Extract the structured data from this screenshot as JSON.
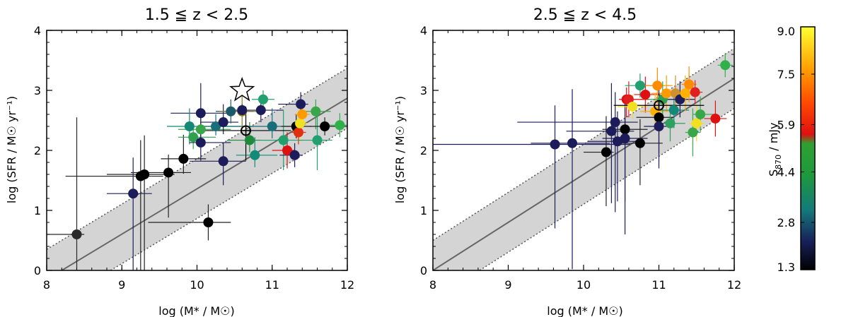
{
  "chart_data": [
    {
      "type": "scatter",
      "title": "1.5 ≦ z < 2.5",
      "xlabel": "log (M* / M☉)",
      "ylabel": "log (SFR / M☉ yr⁻¹)",
      "xlim": [
        8,
        12
      ],
      "ylim": [
        0,
        4
      ],
      "xticks": [
        "8",
        "9",
        "10",
        "11",
        "12"
      ],
      "yticks": [
        "0",
        "1",
        "2",
        "3",
        "4"
      ],
      "main_sequence": {
        "line": [
          [
            8.2,
            0.0
          ],
          [
            12.0,
            2.87
          ]
        ],
        "upper": [
          [
            8.0,
            0.35
          ],
          [
            12.0,
            3.37
          ]
        ],
        "lower": [
          [
            8.85,
            0.0
          ],
          [
            12.0,
            2.37
          ]
        ]
      },
      "star_marker": {
        "x": 10.6,
        "y": 3.0
      },
      "points": [
        {
          "x": 8.4,
          "y": 0.6,
          "s": 1.3,
          "xerr": [
            0.7,
            0.1
          ],
          "yerr": [
            0.6,
            1.95
          ],
          "color": "#2a2a2a"
        },
        {
          "x": 9.15,
          "y": 1.28,
          "s": 2.0,
          "xerr": [
            0.35,
            0.25
          ],
          "yerr": [
            1.28,
            0.6
          ],
          "color": "#1c1c5a"
        },
        {
          "x": 9.25,
          "y": 1.57,
          "s": 1.3,
          "xerr": [
            1.0,
            0.3
          ],
          "yerr": [
            1.57,
            0.6
          ],
          "color": "#000000"
        },
        {
          "x": 9.3,
          "y": 1.6,
          "s": 1.3,
          "xerr": [
            0.5,
            0.4
          ],
          "yerr": [
            1.6,
            0.65
          ],
          "color": "#000000"
        },
        {
          "x": 9.62,
          "y": 1.63,
          "s": 1.3,
          "xerr": [
            0.5,
            0.3
          ],
          "yerr": [
            0.75,
            0.3
          ],
          "color": "#000000"
        },
        {
          "x": 9.82,
          "y": 1.86,
          "s": 1.3,
          "xerr": [
            0.3,
            0.3
          ],
          "yerr": [
            0.25,
            0.4
          ],
          "color": "#000000"
        },
        {
          "x": 10.05,
          "y": 2.62,
          "s": 2.2,
          "xerr": [
            0.4,
            0.4
          ],
          "yerr": [
            0.5,
            0.5
          ],
          "color": "#1c1c5a"
        },
        {
          "x": 10.15,
          "y": 0.8,
          "s": 1.3,
          "xerr": [
            0.8,
            0.3
          ],
          "yerr": [
            0.3,
            0.3
          ],
          "color": "#000000"
        },
        {
          "x": 9.9,
          "y": 2.4,
          "s": 3.5,
          "xerr": [
            0.3,
            0.8
          ],
          "yerr": [
            0.3,
            0.3
          ],
          "color": "#138a78"
        },
        {
          "x": 9.95,
          "y": 2.22,
          "s": 3.5,
          "xerr": [
            0.2,
            0.3
          ],
          "yerr": [
            0.2,
            0.2
          ],
          "color": "#2fa050"
        },
        {
          "x": 10.05,
          "y": 2.35,
          "s": 3.8,
          "xerr": [
            0.3,
            0.4
          ],
          "yerr": [
            0.2,
            0.25
          ],
          "color": "#3aa64a"
        },
        {
          "x": 10.05,
          "y": 2.13,
          "s": 2.2,
          "xerr": [
            0.15,
            0.4
          ],
          "yerr": [
            0.3,
            0.5
          ],
          "color": "#1c1c5a"
        },
        {
          "x": 10.25,
          "y": 2.4,
          "s": 2.8,
          "xerr": [
            0.2,
            0.5
          ],
          "yerr": [
            0.15,
            0.2
          ],
          "color": "#1a6e7a"
        },
        {
          "x": 10.35,
          "y": 2.47,
          "s": 2.2,
          "xerr": [
            0.3,
            0.2
          ],
          "yerr": [
            0.2,
            0.3
          ],
          "color": "#1c1c5a"
        },
        {
          "x": 10.35,
          "y": 1.82,
          "s": 2.2,
          "xerr": [
            0.45,
            0.3
          ],
          "yerr": [
            0.4,
            0.3
          ],
          "color": "#1c1c5a"
        },
        {
          "x": 10.45,
          "y": 2.65,
          "s": 2.6,
          "xerr": [
            0.2,
            0.3
          ],
          "yerr": [
            0.2,
            0.2
          ],
          "color": "#1a5a6a"
        },
        {
          "x": 10.6,
          "y": 2.65,
          "s": 4.4,
          "xerr": [
            0.3,
            0.2
          ],
          "yerr": [
            0.3,
            0.3
          ],
          "color": "#8a7a20"
        },
        {
          "x": 10.6,
          "y": 2.67,
          "s": 2.2,
          "xerr": [
            0.1,
            0.1
          ],
          "yerr": [
            0.1,
            0.1
          ],
          "color": "#1c1c5a"
        },
        {
          "x": 10.7,
          "y": 2.17,
          "s": 4.4,
          "xerr": [
            0.3,
            0.3
          ],
          "yerr": [
            0.2,
            0.3
          ],
          "color": "#1f8a3a"
        },
        {
          "x": 10.85,
          "y": 2.67,
          "s": 2.2,
          "xerr": [
            0.2,
            0.3
          ],
          "yerr": [
            0.2,
            0.25
          ],
          "color": "#1c1c5a"
        },
        {
          "x": 10.88,
          "y": 2.85,
          "s": 3.5,
          "xerr": [
            0.15,
            0.15
          ],
          "yerr": [
            0.15,
            0.15
          ],
          "color": "#22a070"
        },
        {
          "x": 10.77,
          "y": 1.92,
          "s": 3.2,
          "xerr": [
            0.25,
            0.3
          ],
          "yerr": [
            0.2,
            0.3
          ],
          "color": "#138a78"
        },
        {
          "x": 11.0,
          "y": 2.4,
          "s": 3.5,
          "xerr": [
            0.3,
            0.3
          ],
          "yerr": [
            0.2,
            0.3
          ],
          "color": "#1a6e7a"
        },
        {
          "x": 11.15,
          "y": 2.17,
          "s": 3.5,
          "xerr": [
            0.3,
            0.25
          ],
          "yerr": [
            0.5,
            0.5
          ],
          "color": "#22a070"
        },
        {
          "x": 11.2,
          "y": 2.0,
          "s": 6.0,
          "xerr": [
            0.2,
            0.1
          ],
          "yerr": [
            0.3,
            0.3
          ],
          "color": "#e01010"
        },
        {
          "x": 11.3,
          "y": 1.92,
          "s": 2.2,
          "xerr": [
            0.2,
            0.1
          ],
          "yerr": [
            0.2,
            0.2
          ],
          "color": "#1c1c5a"
        },
        {
          "x": 11.32,
          "y": 2.4,
          "s": 1.3,
          "xerr": [
            0.2,
            0.2
          ],
          "yerr": [
            0.2,
            0.2
          ],
          "color": "#000000"
        },
        {
          "x": 11.38,
          "y": 2.77,
          "s": 2.2,
          "xerr": [
            0.3,
            0.1
          ],
          "yerr": [
            0.2,
            0.2
          ],
          "color": "#1c1c5a"
        },
        {
          "x": 11.35,
          "y": 2.3,
          "s": 6.2,
          "xerr": [
            0.1,
            0.1
          ],
          "yerr": [
            0.2,
            0.2
          ],
          "color": "#e03010"
        },
        {
          "x": 11.37,
          "y": 2.45,
          "s": 8.8,
          "xerr": [
            0.1,
            0.1
          ],
          "yerr": [
            0.3,
            0.3
          ],
          "color": "#f0e020"
        },
        {
          "x": 11.4,
          "y": 2.6,
          "s": 7.0,
          "xerr": [
            0.1,
            0.1
          ],
          "yerr": [
            0.2,
            0.2
          ],
          "color": "#ff9a00"
        },
        {
          "x": 11.58,
          "y": 2.65,
          "s": 4.2,
          "xerr": [
            0.2,
            0.2
          ],
          "yerr": [
            0.3,
            0.2
          ],
          "color": "#3aa64a"
        },
        {
          "x": 11.6,
          "y": 2.17,
          "s": 3.5,
          "xerr": [
            0.25,
            0.2
          ],
          "yerr": [
            0.5,
            0.5
          ],
          "color": "#22a070"
        },
        {
          "x": 11.7,
          "y": 2.4,
          "s": 1.3,
          "xerr": [
            0.2,
            0.2
          ],
          "yerr": [
            0.15,
            0.15
          ],
          "color": "#000000"
        },
        {
          "x": 11.9,
          "y": 2.42,
          "s": 4.4,
          "xerr": [
            0.25,
            0.1
          ],
          "yerr": [
            0.2,
            0.2
          ],
          "color": "#2fb04a"
        }
      ],
      "circled_points": [
        {
          "x": 10.65,
          "y": 2.33,
          "xerr": [
            0.6,
            0.6
          ],
          "yerr": [
            0.5,
            0.4
          ]
        }
      ]
    },
    {
      "type": "scatter",
      "title": "2.5 ≦ z < 4.5",
      "xlabel": "log (M* / M☉)",
      "ylabel": "log (SFR / M☉ yr⁻¹)",
      "xlim": [
        8,
        12
      ],
      "ylim": [
        0,
        4
      ],
      "xticks": [
        "8",
        "9",
        "10",
        "11",
        "12"
      ],
      "yticks": [
        "0",
        "1",
        "2",
        "3",
        "4"
      ],
      "main_sequence": {
        "line": [
          [
            8.0,
            0.0
          ],
          [
            12.0,
            3.2
          ]
        ],
        "upper": [
          [
            8.0,
            0.5
          ],
          [
            12.0,
            3.7
          ]
        ],
        "lower": [
          [
            8.62,
            0.0
          ],
          [
            12.0,
            2.7
          ]
        ]
      },
      "points": [
        {
          "x": 9.62,
          "y": 2.1,
          "s": 1.5,
          "xerr": [
            1.62,
            1.0
          ],
          "yerr": [
            1.4,
            0.65
          ],
          "color": "#1c1c5a"
        },
        {
          "x": 9.85,
          "y": 2.12,
          "s": 2.2,
          "xerr": [
            0.55,
            0.5
          ],
          "yerr": [
            2.1,
            0.9
          ],
          "color": "#1c1c5a"
        },
        {
          "x": 10.3,
          "y": 1.97,
          "s": 1.3,
          "xerr": [
            0.3,
            0.1
          ],
          "yerr": [
            0.9,
            0.6
          ],
          "color": "#000000"
        },
        {
          "x": 10.37,
          "y": 2.32,
          "s": 2.0,
          "xerr": [
            0.6,
            0.3
          ],
          "yerr": [
            1.2,
            0.8
          ],
          "color": "#1c1c5a"
        },
        {
          "x": 10.42,
          "y": 2.47,
          "s": 2.2,
          "xerr": [
            1.3,
            0.3
          ],
          "yerr": [
            1.5,
            0.5
          ],
          "color": "#1c1c5a"
        },
        {
          "x": 10.45,
          "y": 2.15,
          "s": 2.2,
          "xerr": [
            0.4,
            0.3
          ],
          "yerr": [
            1.0,
            0.5
          ],
          "color": "#1c1c5a"
        },
        {
          "x": 10.55,
          "y": 2.35,
          "s": 1.3,
          "xerr": [
            0.3,
            0.3
          ],
          "yerr": [
            1.2,
            0.5
          ],
          "color": "#000000"
        },
        {
          "x": 10.55,
          "y": 2.2,
          "s": 2.2,
          "xerr": [
            0.3,
            0.3
          ],
          "yerr": [
            1.6,
            0.5
          ],
          "color": "#1c1c5a"
        },
        {
          "x": 10.57,
          "y": 2.85,
          "s": 6.0,
          "xerr": [
            0.1,
            0.3
          ],
          "yerr": [
            0.3,
            0.2
          ],
          "color": "#e01010"
        },
        {
          "x": 10.6,
          "y": 2.85,
          "s": 6.2,
          "xerr": [
            0.1,
            0.2
          ],
          "yerr": [
            0.3,
            0.3
          ],
          "color": "#e02020"
        },
        {
          "x": 10.65,
          "y": 2.73,
          "s": 8.8,
          "xerr": [
            0.2,
            0.2
          ],
          "yerr": [
            0.2,
            0.2
          ],
          "color": "#f0e020"
        },
        {
          "x": 10.75,
          "y": 3.08,
          "s": 3.5,
          "xerr": [
            0.2,
            0.2
          ],
          "yerr": [
            0.2,
            0.2
          ],
          "color": "#22a070"
        },
        {
          "x": 10.75,
          "y": 2.12,
          "s": 1.3,
          "xerr": [
            0.3,
            0.3
          ],
          "yerr": [
            0.7,
            0.4
          ],
          "color": "#000000"
        },
        {
          "x": 10.82,
          "y": 2.93,
          "s": 6.0,
          "xerr": [
            0.15,
            0.2
          ],
          "yerr": [
            0.3,
            0.3
          ],
          "color": "#e01010"
        },
        {
          "x": 10.95,
          "y": 2.65,
          "s": 7.8,
          "xerr": [
            0.2,
            0.2
          ],
          "yerr": [
            0.3,
            0.3
          ],
          "color": "#ffb000"
        },
        {
          "x": 10.98,
          "y": 3.08,
          "s": 7.2,
          "xerr": [
            0.2,
            0.2
          ],
          "yerr": [
            0.3,
            0.3
          ],
          "color": "#ff8c00"
        },
        {
          "x": 11.0,
          "y": 2.55,
          "s": 1.3,
          "xerr": [
            0.3,
            0.2
          ],
          "yerr": [
            0.6,
            0.4
          ],
          "color": "#000000"
        },
        {
          "x": 11.0,
          "y": 2.4,
          "s": 2.2,
          "xerr": [
            0.2,
            0.2
          ],
          "yerr": [
            0.7,
            0.4
          ],
          "color": "#1c1c5a"
        },
        {
          "x": 11.05,
          "y": 2.85,
          "s": 4.2,
          "xerr": [
            0.2,
            0.2
          ],
          "yerr": [
            0.3,
            0.3
          ],
          "color": "#2fa050"
        },
        {
          "x": 11.1,
          "y": 2.95,
          "s": 7.0,
          "xerr": [
            0.2,
            0.2
          ],
          "yerr": [
            0.3,
            0.3
          ],
          "color": "#ff9a00"
        },
        {
          "x": 11.15,
          "y": 2.45,
          "s": 3.8,
          "xerr": [
            0.2,
            0.2
          ],
          "yerr": [
            0.3,
            0.3
          ],
          "color": "#2fa060"
        },
        {
          "x": 11.2,
          "y": 2.67,
          "s": 3.5,
          "xerr": [
            0.2,
            0.2
          ],
          "yerr": [
            0.3,
            0.3
          ],
          "color": "#138a78"
        },
        {
          "x": 11.22,
          "y": 2.95,
          "s": 5.0,
          "xerr": [
            0.2,
            0.2
          ],
          "yerr": [
            0.3,
            0.3
          ],
          "color": "#d09030"
        },
        {
          "x": 11.28,
          "y": 2.85,
          "s": 2.2,
          "xerr": [
            0.2,
            0.2
          ],
          "yerr": [
            0.3,
            0.3
          ],
          "color": "#1c1c5a"
        },
        {
          "x": 11.35,
          "y": 2.95,
          "s": 7.8,
          "xerr": [
            0.2,
            0.2
          ],
          "yerr": [
            0.3,
            0.3
          ],
          "color": "#ffb000"
        },
        {
          "x": 11.4,
          "y": 3.1,
          "s": 7.2,
          "xerr": [
            0.1,
            0.1
          ],
          "yerr": [
            0.3,
            0.3
          ],
          "color": "#ff8c00"
        },
        {
          "x": 11.45,
          "y": 2.3,
          "s": 4.4,
          "xerr": [
            0.1,
            0.1
          ],
          "yerr": [
            0.4,
            0.4
          ],
          "color": "#3aa64a"
        },
        {
          "x": 11.48,
          "y": 2.97,
          "s": 6.2,
          "xerr": [
            0.1,
            0.1
          ],
          "yerr": [
            0.2,
            0.2
          ],
          "color": "#e02020"
        },
        {
          "x": 11.5,
          "y": 2.45,
          "s": 8.8,
          "xerr": [
            0.1,
            0.1
          ],
          "yerr": [
            0.3,
            0.3
          ],
          "color": "#f0e020"
        },
        {
          "x": 11.55,
          "y": 2.6,
          "s": 4.4,
          "xerr": [
            0.1,
            0.2
          ],
          "yerr": [
            0.3,
            0.3
          ],
          "color": "#3aa64a"
        },
        {
          "x": 11.75,
          "y": 2.53,
          "s": 6.0,
          "xerr": [
            0.15,
            0.15
          ],
          "yerr": [
            0.3,
            0.3
          ],
          "color": "#e01010"
        },
        {
          "x": 11.88,
          "y": 3.42,
          "s": 4.4,
          "xerr": [
            0.1,
            0.1
          ],
          "yerr": [
            0.2,
            0.2
          ],
          "color": "#2fb04a"
        }
      ],
      "circled_points": [
        {
          "x": 11.0,
          "y": 2.75,
          "xerr": [
            0.6,
            0.6
          ],
          "yerr": [
            0.4,
            0.4
          ]
        }
      ]
    },
    {
      "type": "colorbar",
      "label": "S870 / mJy",
      "label_main": "S",
      "label_sub": "870",
      "label_unit": " / mJy",
      "range": [
        1.3,
        9.0
      ],
      "ticks": [
        "1.3",
        "2.8",
        "4.4",
        "5.9",
        "7.5",
        "9.0"
      ],
      "tick_values": [
        1.3,
        2.8,
        4.4,
        5.9,
        7.5,
        9.0
      ],
      "stops": [
        {
          "v": 1.3,
          "color": "#000000"
        },
        {
          "v": 2.2,
          "color": "#18205a"
        },
        {
          "v": 3.2,
          "color": "#137a7a"
        },
        {
          "v": 4.3,
          "color": "#1e9a3c"
        },
        {
          "v": 5.3,
          "color": "#2fa030"
        },
        {
          "v": 5.6,
          "color": "#e01010"
        },
        {
          "v": 6.6,
          "color": "#ff4a00"
        },
        {
          "v": 7.6,
          "color": "#ff9a00"
        },
        {
          "v": 9.0,
          "color": "#ffff30"
        }
      ]
    }
  ]
}
